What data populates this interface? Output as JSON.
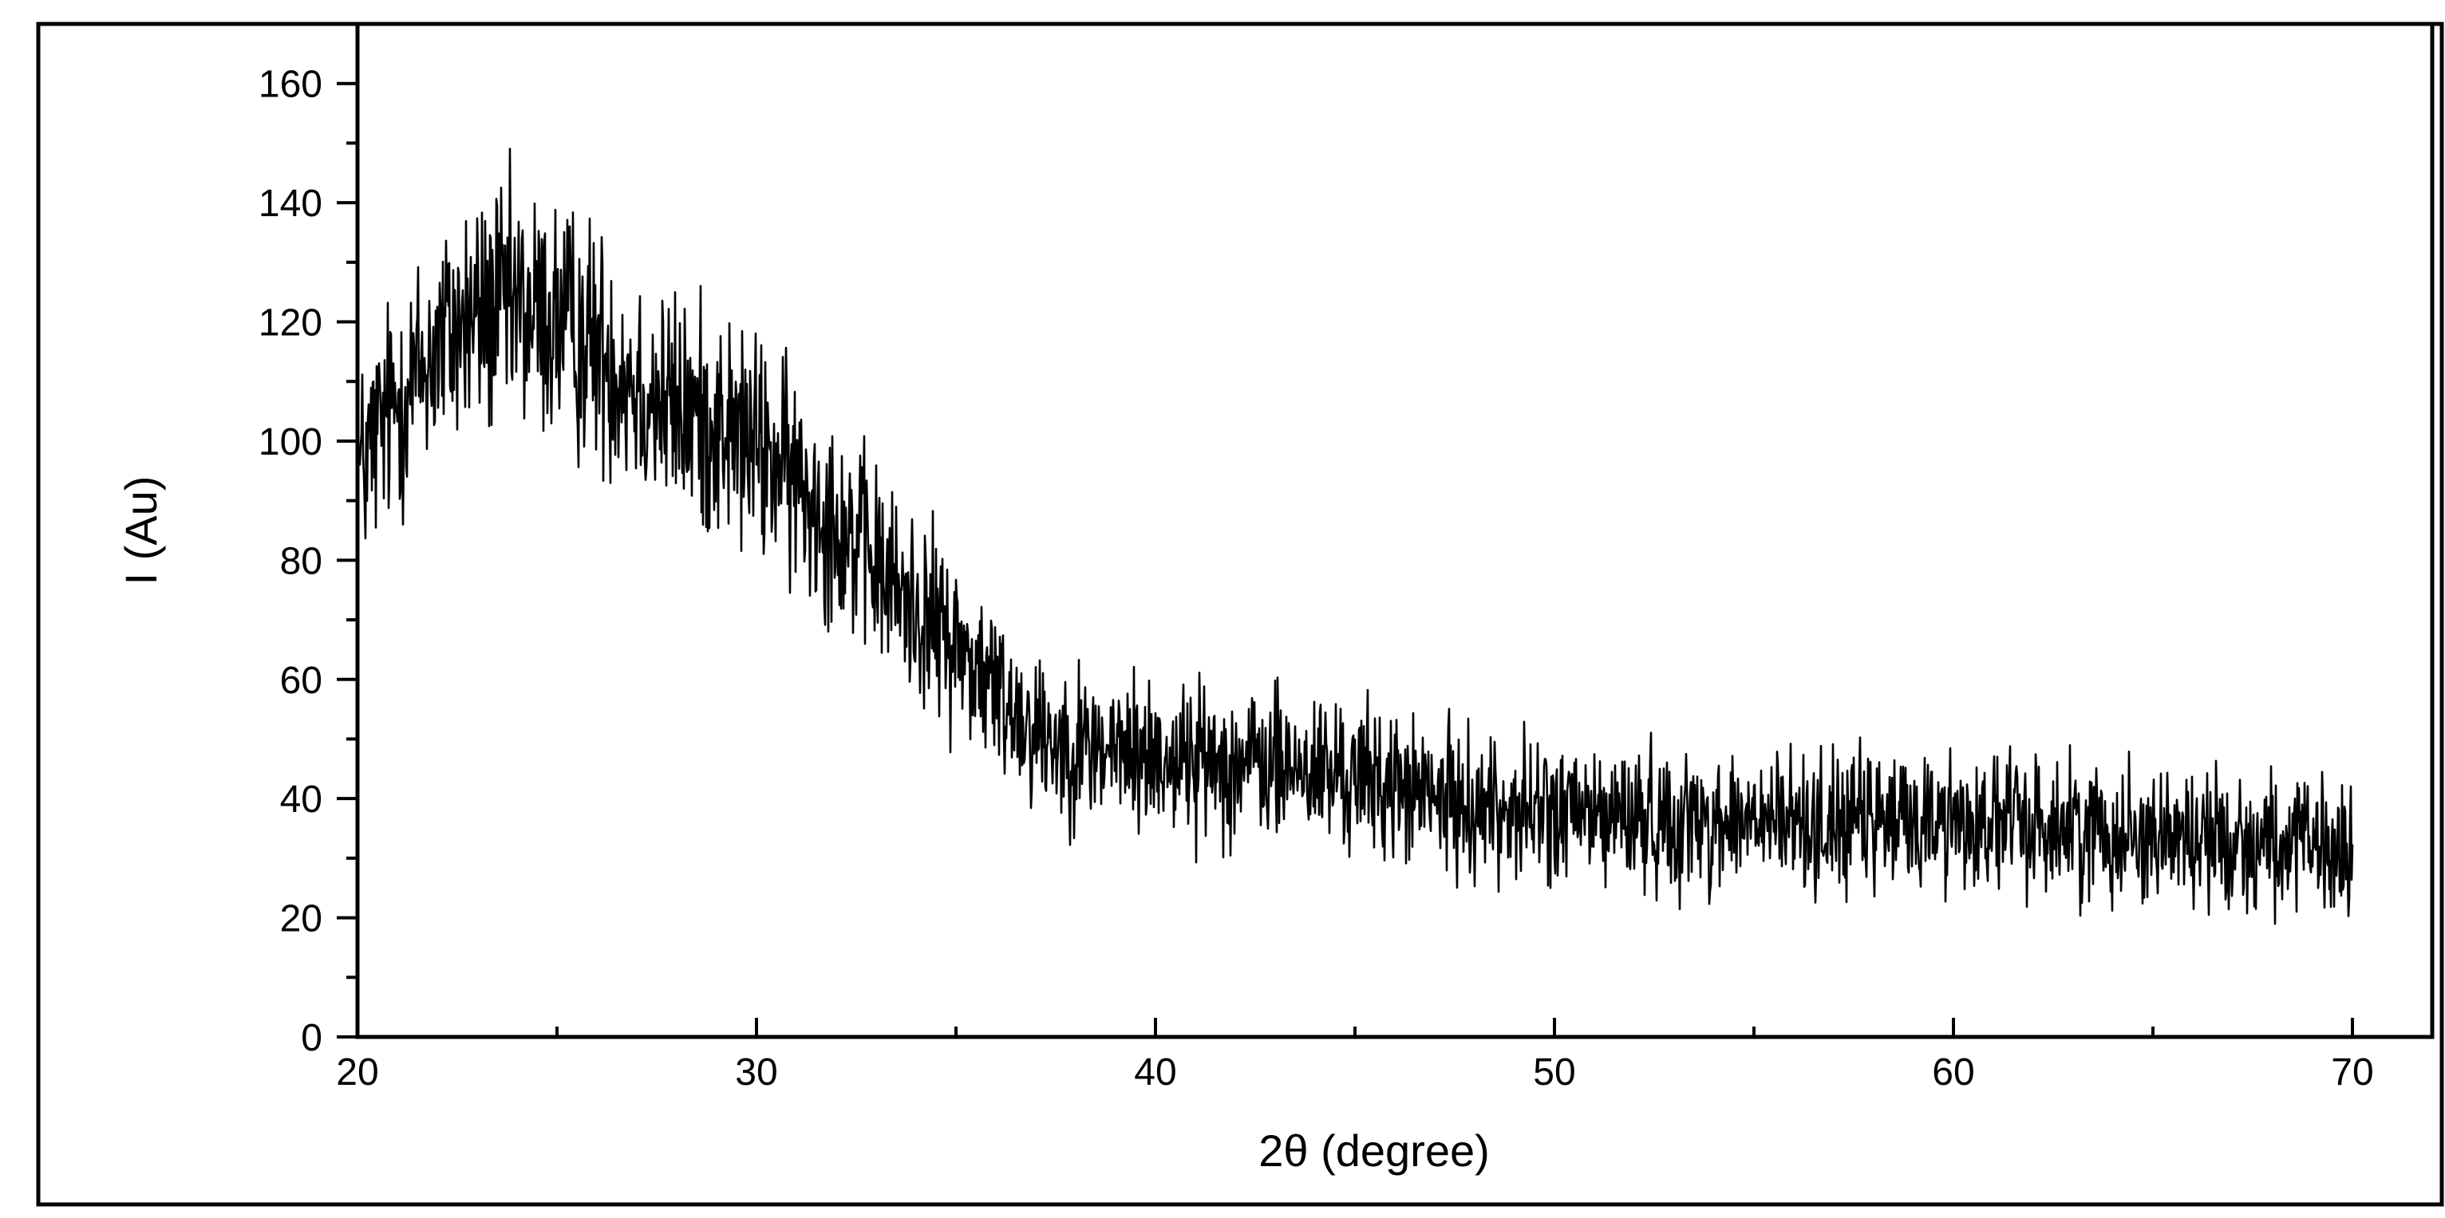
{
  "chart_data": {
    "type": "line",
    "title": "",
    "xlabel": "2θ (degree)",
    "ylabel": "I (Au)",
    "xlim": [
      20,
      72
    ],
    "ylim": [
      0,
      170
    ],
    "x_ticks": [
      20,
      30,
      40,
      50,
      60,
      70
    ],
    "y_ticks": [
      0,
      20,
      40,
      60,
      80,
      100,
      120,
      140,
      160
    ],
    "x_tick_labels": [
      "20",
      "30",
      "40",
      "50",
      "60",
      "70"
    ],
    "y_tick_labels": [
      "0",
      "20",
      "40",
      "60",
      "80",
      "100",
      "120",
      "140",
      "160"
    ],
    "x_minor_step": 5,
    "y_minor_step": 10,
    "grid": false,
    "legend": "none",
    "line_color": "#000000",
    "series": [
      {
        "x": [
          20,
          20.5,
          21,
          21.5,
          22,
          22.5,
          23,
          23.5,
          24,
          24.5,
          25,
          25.5,
          26,
          26.5,
          27,
          27.5,
          28,
          28.5,
          29,
          29.5,
          30,
          30.5,
          31,
          31.5,
          32,
          32.5,
          33,
          33.5,
          34,
          34.5,
          35,
          35.5,
          36,
          36.5,
          37,
          37.5,
          38,
          38.5,
          39,
          39.5,
          40,
          40.5,
          41,
          41.5,
          42,
          42.5,
          43,
          43.5,
          44,
          44.5,
          45,
          45.5,
          46,
          46.5,
          47,
          47.5,
          48,
          48.5,
          49,
          49.5,
          50,
          50.5,
          51,
          51.5,
          52,
          52.5,
          53,
          53.5,
          54,
          54.5,
          55,
          55.5,
          56,
          56.5,
          57,
          57.5,
          58,
          58.5,
          59,
          59.5,
          60,
          60.5,
          61,
          61.5,
          62,
          62.5,
          63,
          63.5,
          64,
          64.5,
          65,
          65.5,
          66,
          66.5,
          67,
          67.5,
          68,
          68.5,
          69,
          69.5,
          70
        ],
        "values": [
          94,
          101,
          107,
          111,
          116,
          119,
          121,
          122,
          122,
          121,
          120,
          118,
          116,
          113,
          110,
          107,
          105,
          104,
          103,
          101,
          99,
          96,
          93,
          90,
          87,
          83,
          79,
          75,
          72,
          69,
          66,
          62,
          58,
          55,
          52,
          50,
          49,
          48.5,
          48,
          47.5,
          47,
          47,
          46.5,
          46.5,
          46,
          46,
          45.5,
          45,
          44.5,
          44,
          43.5,
          43,
          42,
          41,
          40,
          39.5,
          39,
          38.5,
          38,
          38,
          37.5,
          37.5,
          37,
          37,
          37,
          36.5,
          36.5,
          36.5,
          36,
          36,
          36,
          36,
          36,
          36,
          36,
          36,
          36,
          36,
          36.5,
          36.5,
          36.5,
          36,
          36,
          36,
          35.5,
          35.5,
          35,
          35,
          34.5,
          34.5,
          34,
          34,
          33.5,
          33.5,
          33,
          33,
          32.5,
          32,
          31.5,
          31,
          30
        ],
        "noise_amplitude": 6.5
      }
    ]
  }
}
